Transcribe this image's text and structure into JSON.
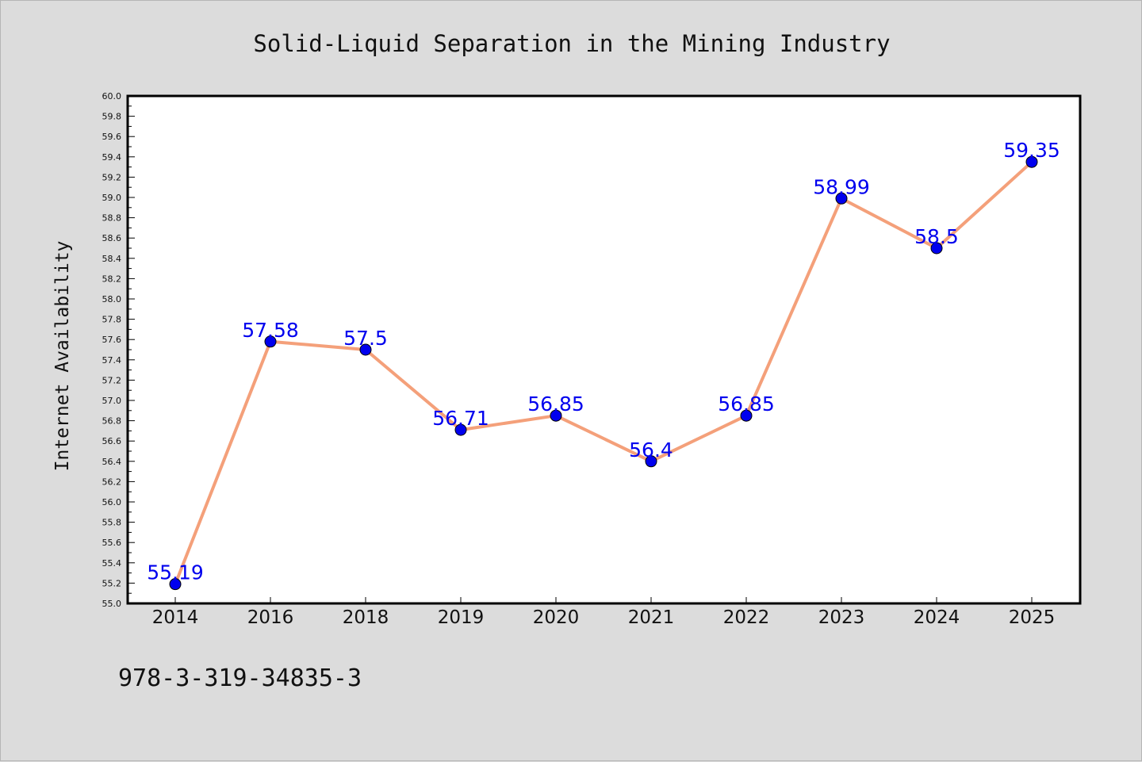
{
  "chart_data": {
    "type": "line",
    "title": "Solid-Liquid Separation in the Mining Industry",
    "xlabel": "",
    "ylabel": "Internet Availability",
    "categories": [
      "2014",
      "2016",
      "2018",
      "2019",
      "2020",
      "2021",
      "2022",
      "2023",
      "2024",
      "2025"
    ],
    "series": [
      {
        "values": [
          55.19,
          57.58,
          57.5,
          56.71,
          56.85,
          56.4,
          56.85,
          58.99,
          58.5,
          59.35
        ],
        "data_labels": [
          "55.19",
          "57.58",
          "57.5",
          "56.71",
          "56.85",
          "56.4",
          "56.85",
          "58.99",
          "58.5",
          "59.35"
        ],
        "line_color": "#f4a07a",
        "marker_color": "#0000ee",
        "label_color": "#0000ee"
      }
    ],
    "ylim": [
      55.0,
      60.0
    ],
    "y_major_step": 0.2,
    "y_tick_labels": [
      "55.0",
      "55.2",
      "55.4",
      "55.6",
      "55.8",
      "56.0",
      "56.2",
      "56.4",
      "56.6",
      "56.8",
      "57.0",
      "57.2",
      "57.4",
      "57.6",
      "57.8",
      "58.0",
      "58.2",
      "58.4",
      "58.6",
      "58.8",
      "59.0",
      "59.2",
      "59.4",
      "59.6",
      "59.8",
      "60.0"
    ],
    "grid": false,
    "legend": "none"
  },
  "footer": {
    "text": "978-3-319-34835-3"
  },
  "colors": {
    "background": "#dcdcdc",
    "plot_background": "#ffffff",
    "axis": "#000000"
  }
}
